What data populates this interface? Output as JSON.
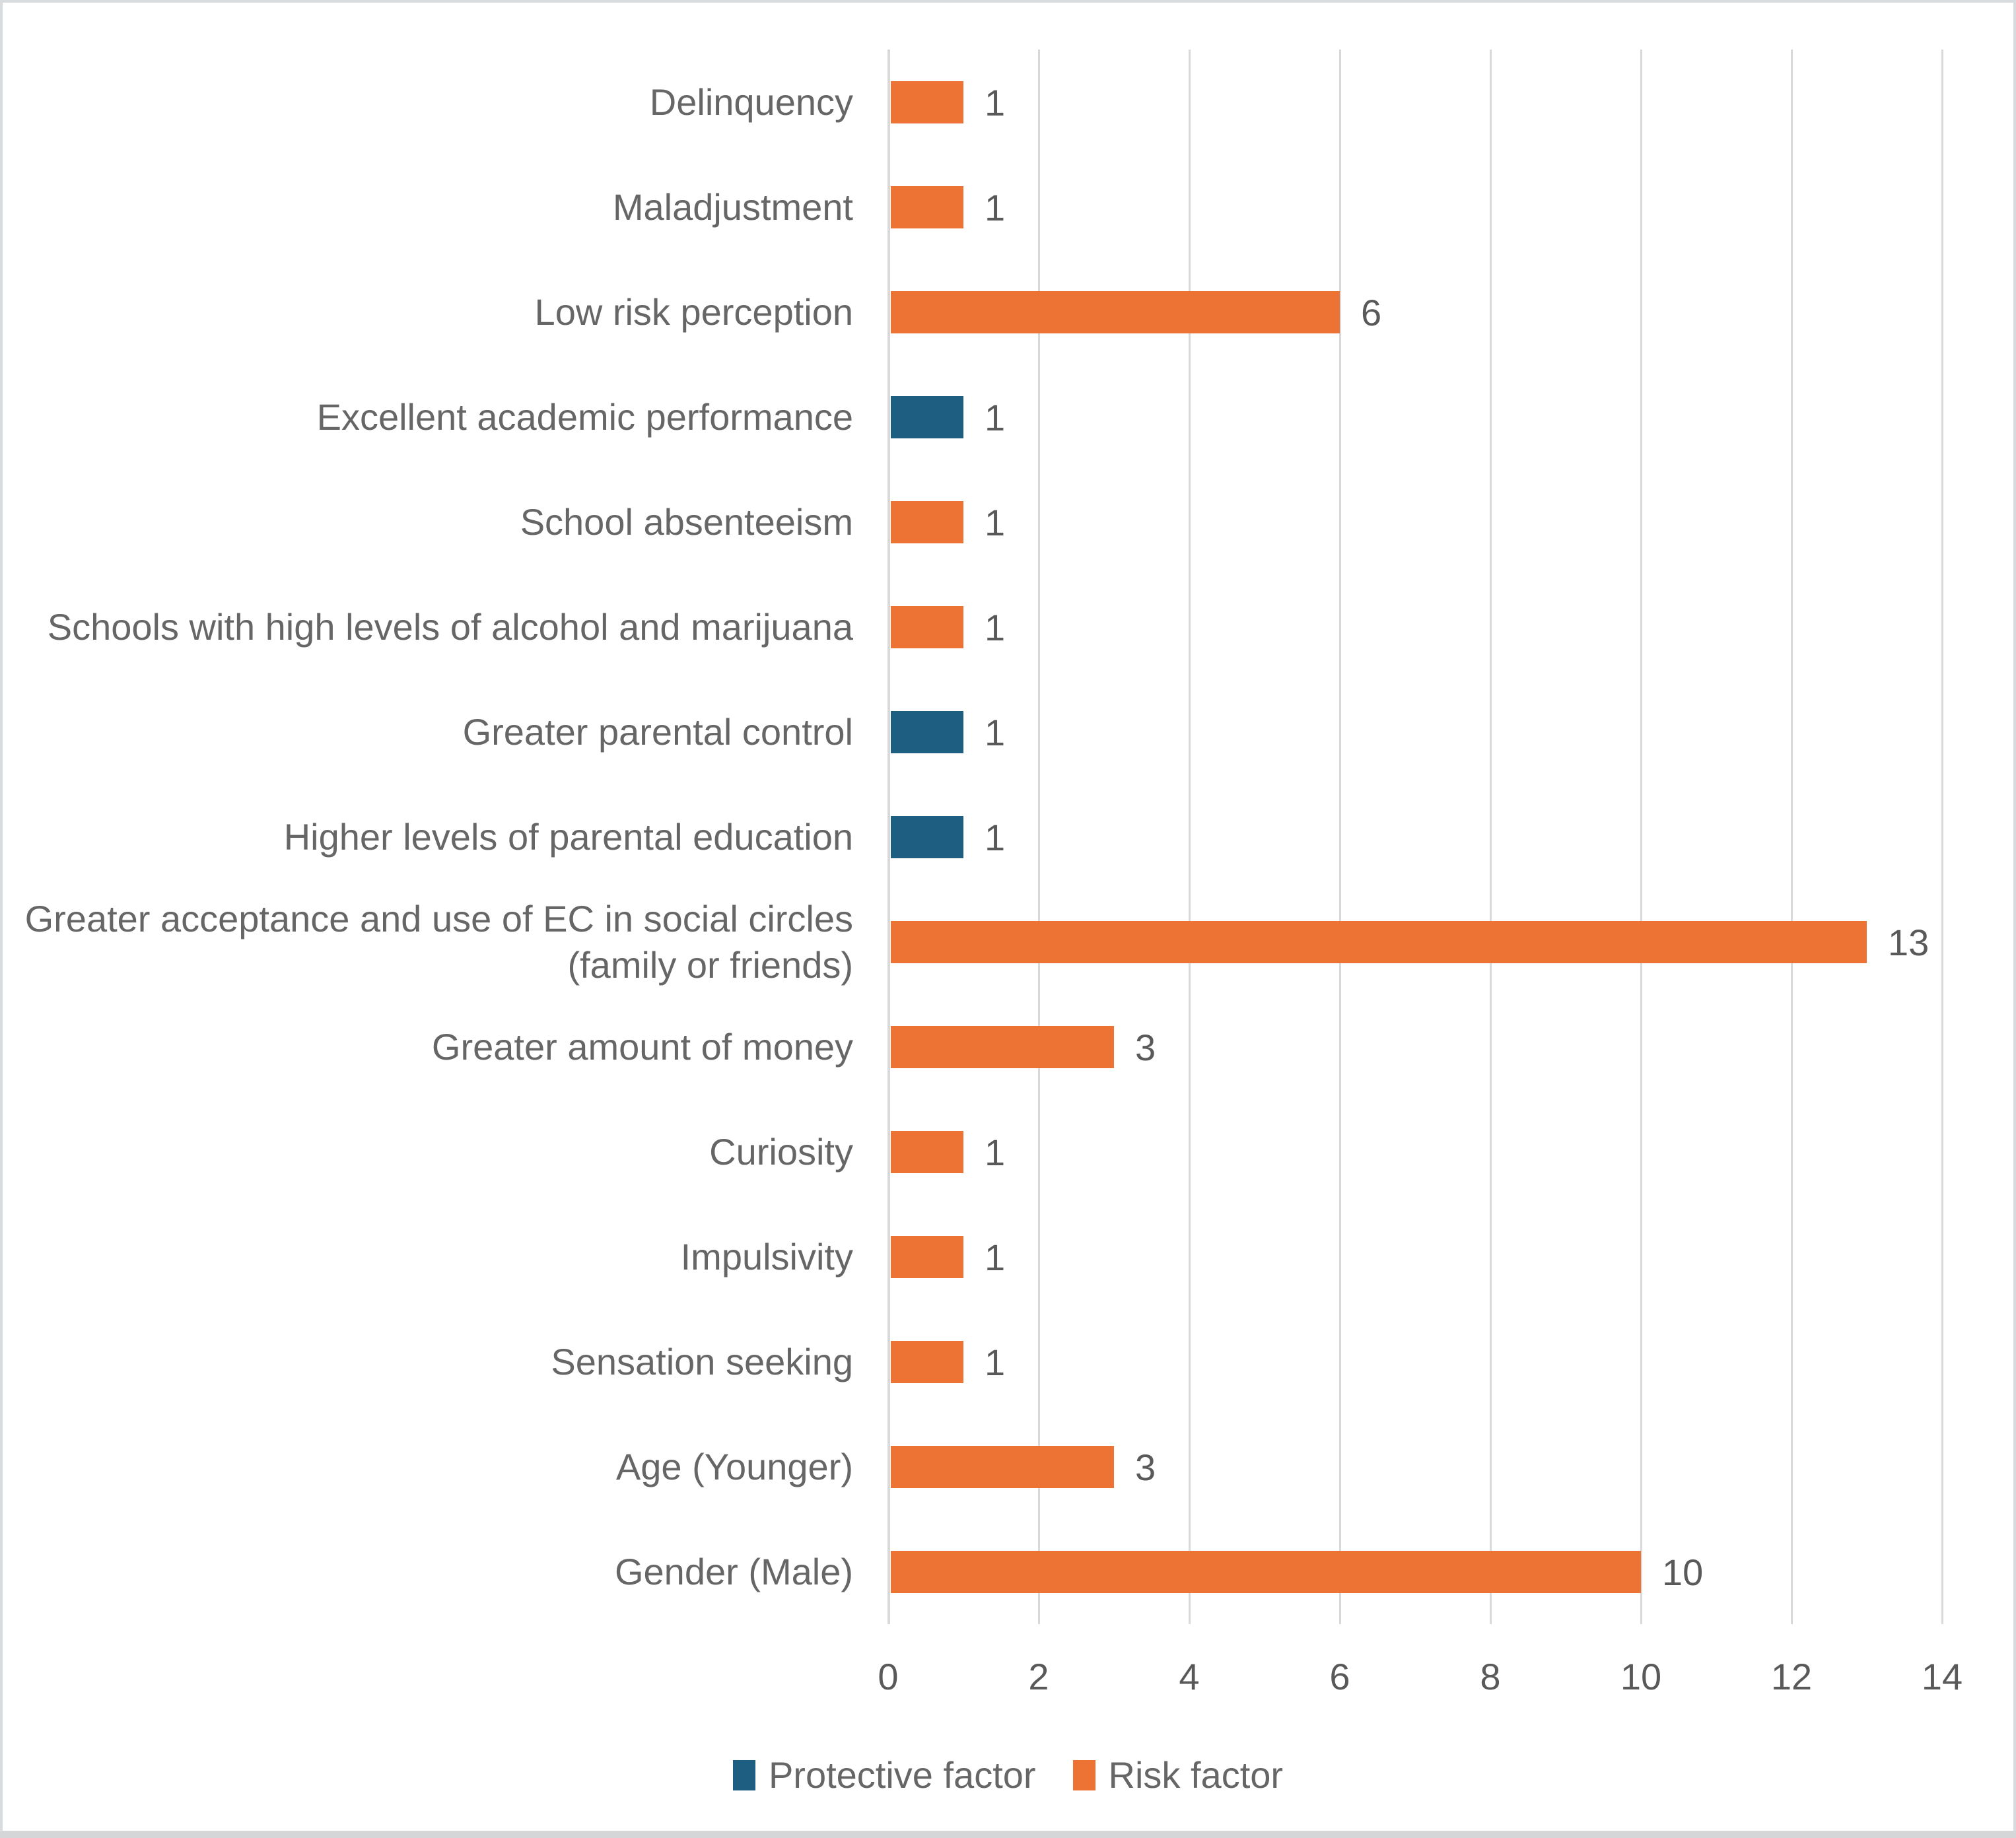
{
  "chart_data": {
    "type": "bar",
    "orientation": "horizontal",
    "title": "",
    "categories": [
      "Delinquency",
      "Maladjustment",
      "Low risk perception",
      "Excellent academic performance",
      "School absenteeism",
      "Schools with high levels of alcohol and marijuana",
      "Greater parental control",
      "Higher levels of parental education",
      "Greater acceptance and use of EC in social circles (family or friends)",
      "Greater amount of money",
      "Curiosity",
      "Impulsivity",
      "Sensation seeking",
      "Age (Younger)",
      "Gender (Male)"
    ],
    "values": [
      1,
      1,
      6,
      1,
      1,
      1,
      1,
      1,
      13,
      3,
      1,
      1,
      1,
      3,
      10
    ],
    "factors": [
      "risk",
      "risk",
      "risk",
      "protective",
      "risk",
      "risk",
      "protective",
      "protective",
      "risk",
      "risk",
      "risk",
      "risk",
      "risk",
      "risk",
      "risk"
    ],
    "data_labels": [
      "1",
      "1",
      "6",
      "1",
      "1",
      "1",
      "1",
      "1",
      "13",
      "3",
      "1",
      "1",
      "1",
      "3",
      "10"
    ],
    "xlabel": "",
    "ylabel": "",
    "xlim": [
      0,
      14
    ],
    "xticks": [
      "0",
      "2",
      "4",
      "6",
      "8",
      "10",
      "12",
      "14"
    ],
    "grid": "vertical gridlines every 2 units",
    "legend_position": "bottom-center",
    "legend": [
      {
        "label": "Protective factor",
        "color": "#1E5E80"
      },
      {
        "label": "Risk factor",
        "color": "#EC7333"
      }
    ],
    "colors": {
      "protective": "#1E5E80",
      "risk": "#EC7333",
      "gridline": "#D9D9D9",
      "label_text": "#666666",
      "value_text": "#595959"
    }
  }
}
